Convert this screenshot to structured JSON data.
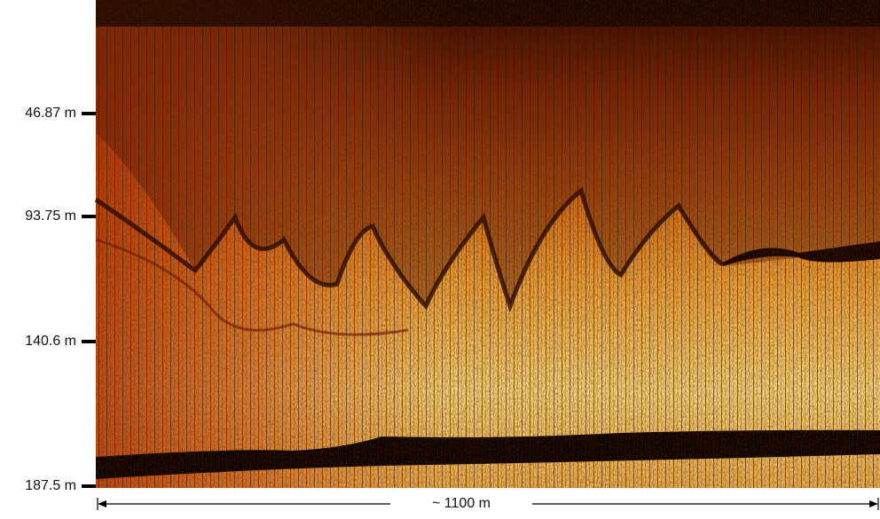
{
  "depth_axis": {
    "labels": [
      "46.87 m",
      "93.75 m",
      "140.6 m",
      "187.5 m"
    ]
  },
  "distance_scale": {
    "label": "~ 1100 m"
  }
}
